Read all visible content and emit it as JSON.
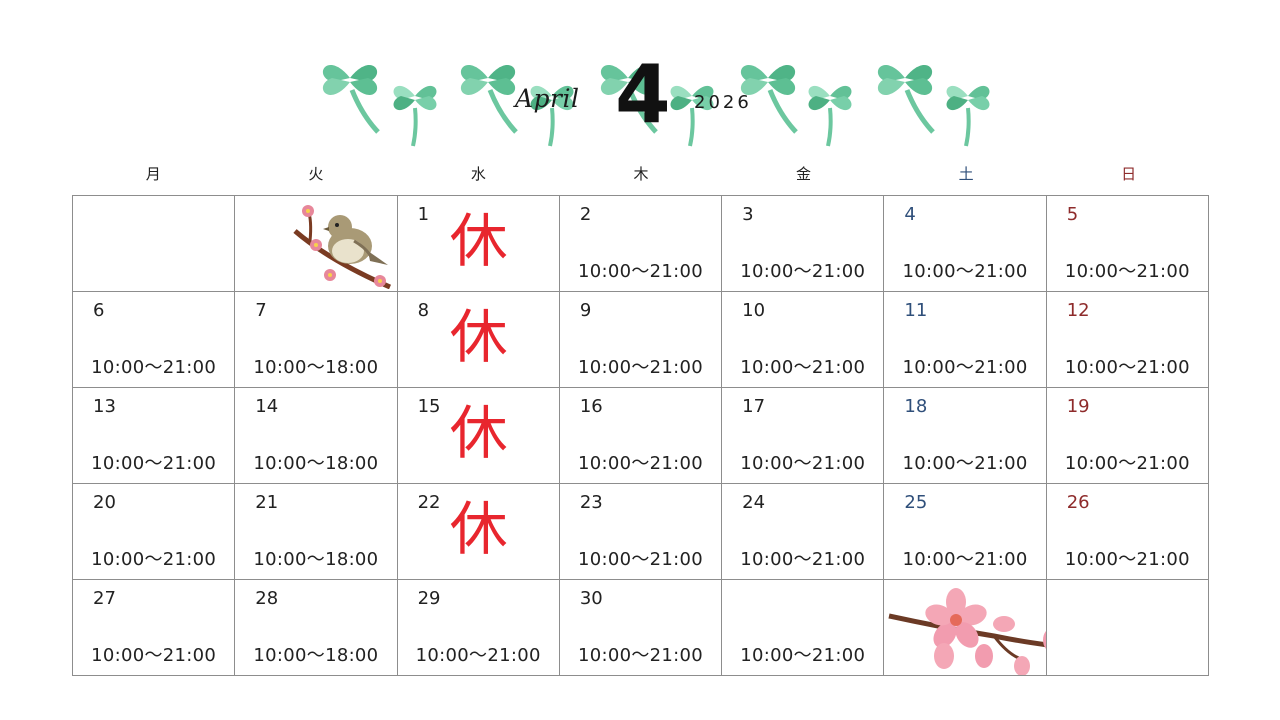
{
  "calendar": {
    "month_name": "April",
    "month_number": "4",
    "year": "2026",
    "weekdays": [
      "月",
      "火",
      "水",
      "木",
      "金",
      "土",
      "日"
    ],
    "colors": {
      "saturday": "#2f4f7a",
      "sunday": "#8e2b2b",
      "closed": "#e8262e",
      "clover": "#5fbf95"
    },
    "rows": [
      [
        {
          "day": "",
          "hours": ""
        },
        {
          "day": "",
          "hours": "",
          "illustration": "bird-on-plum-branch"
        },
        {
          "day": "1",
          "closed": "休"
        },
        {
          "day": "2",
          "hours": "10:00～21:00"
        },
        {
          "day": "3",
          "hours": "10:00～21:00"
        },
        {
          "day": "4",
          "hours": "10:00～21:00"
        },
        {
          "day": "5",
          "hours": "10:00～21:00"
        }
      ],
      [
        {
          "day": "6",
          "hours": "10:00～21:00"
        },
        {
          "day": "7",
          "hours": "10:00～18:00"
        },
        {
          "day": "8",
          "closed": "休"
        },
        {
          "day": "9",
          "hours": "10:00～21:00"
        },
        {
          "day": "10",
          "hours": "10:00～21:00"
        },
        {
          "day": "11",
          "hours": "10:00～21:00"
        },
        {
          "day": "12",
          "hours": "10:00～21:00"
        }
      ],
      [
        {
          "day": "13",
          "hours": "10:00～21:00"
        },
        {
          "day": "14",
          "hours": "10:00～18:00"
        },
        {
          "day": "15",
          "closed": "休"
        },
        {
          "day": "16",
          "hours": "10:00～21:00"
        },
        {
          "day": "17",
          "hours": "10:00～21:00"
        },
        {
          "day": "18",
          "hours": "10:00～21:00"
        },
        {
          "day": "19",
          "hours": "10:00～21:00"
        }
      ],
      [
        {
          "day": "20",
          "hours": "10:00～21:00"
        },
        {
          "day": "21",
          "hours": "10:00～18:00"
        },
        {
          "day": "22",
          "closed": "休"
        },
        {
          "day": "23",
          "hours": "10:00～21:00"
        },
        {
          "day": "24",
          "hours": "10:00～21:00"
        },
        {
          "day": "25",
          "hours": "10:00～21:00"
        },
        {
          "day": "26",
          "hours": "10:00～21:00"
        }
      ],
      [
        {
          "day": "27",
          "hours": "10:00～21:00"
        },
        {
          "day": "28",
          "hours": "10:00～18:00"
        },
        {
          "day": "29",
          "hours": "10:00～21:00"
        },
        {
          "day": "30",
          "hours": "10:00～21:00"
        },
        {
          "day": "",
          "hours": "10:00～21:00"
        },
        {
          "day": "",
          "hours": "",
          "illustration": "cherry-blossom-branch"
        },
        {
          "day": "",
          "hours": ""
        }
      ]
    ]
  }
}
